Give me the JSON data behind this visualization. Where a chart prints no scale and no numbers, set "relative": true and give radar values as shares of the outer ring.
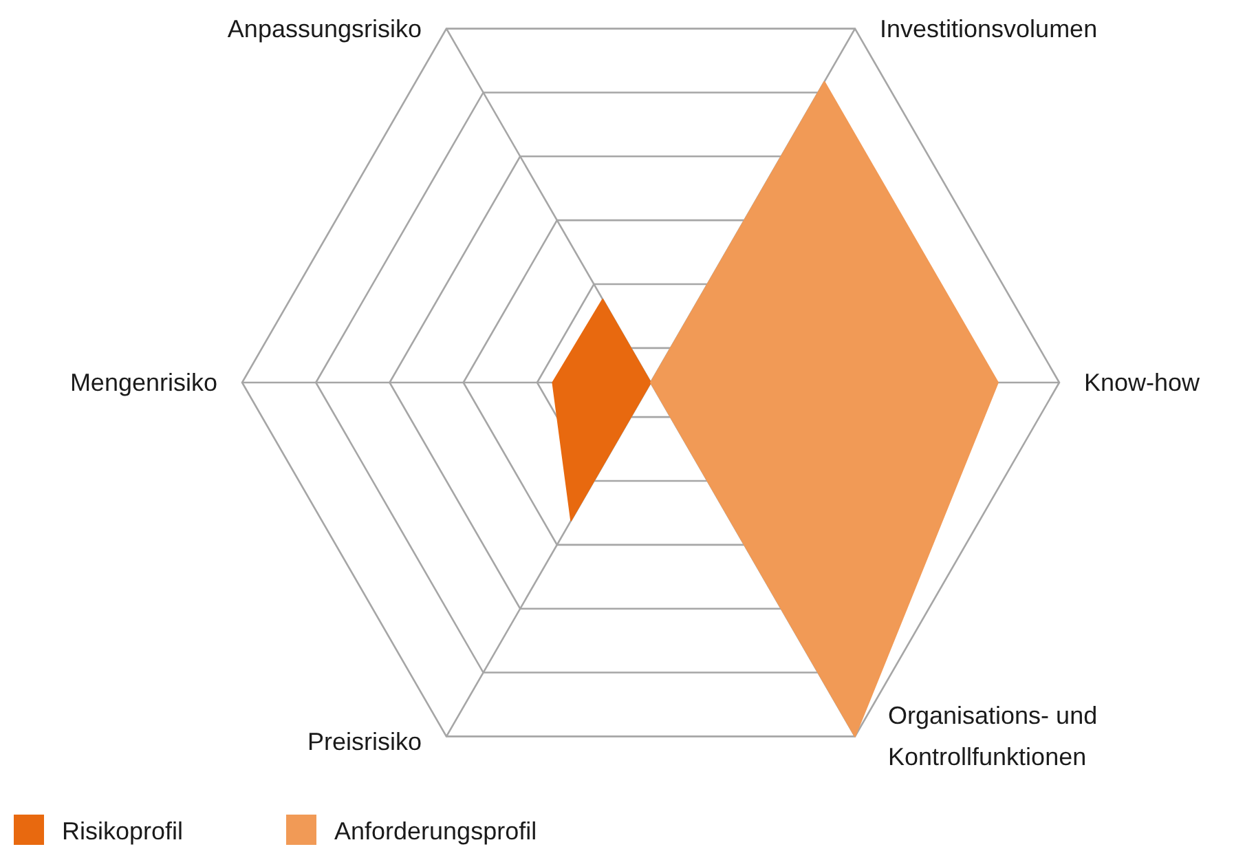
{
  "chart_data": {
    "type": "radar",
    "relative": true,
    "categories": [
      "Investitionsvolumen",
      "Know-how",
      "Organisations- und Kontrollfunktionen",
      "Preisrisiko",
      "Mengenrisiko",
      "Anpassungsrisiko"
    ],
    "series": [
      {
        "name": "Risikoprofil",
        "color": "#e8690f",
        "values": [
          0,
          0,
          0,
          0.39,
          0.24,
          0.235
        ]
      },
      {
        "name": "Anforderungsprofil",
        "color": "#f19a56",
        "values": [
          0.85,
          0.85,
          1,
          0,
          0,
          0
        ]
      }
    ],
    "grid": true,
    "legend": "bottom left"
  }
}
